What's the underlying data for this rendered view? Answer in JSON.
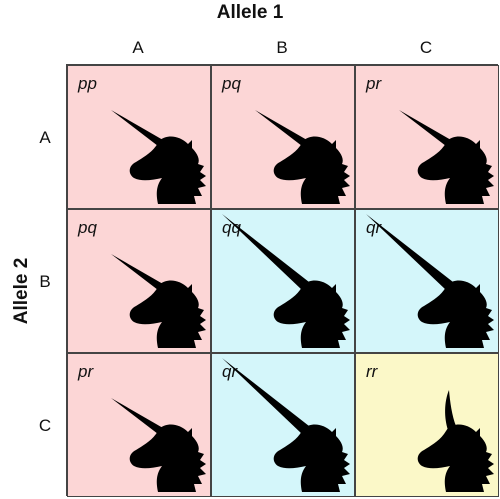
{
  "axis": {
    "x_title": "Allele 1",
    "y_title": "Allele 2"
  },
  "columns": [
    "A",
    "B",
    "C"
  ],
  "rows": [
    "A",
    "B",
    "C"
  ],
  "colors": {
    "pink": "#fcd6d6",
    "cyan": "#d4f6fa",
    "yellow": "#fbf8c8"
  },
  "cells": [
    [
      {
        "label": "pp",
        "color": "pink",
        "horn": "short"
      },
      {
        "label": "pq",
        "color": "pink",
        "horn": "short"
      },
      {
        "label": "pr",
        "color": "pink",
        "horn": "short"
      }
    ],
    [
      {
        "label": "pq",
        "color": "pink",
        "horn": "short"
      },
      {
        "label": "qq",
        "color": "cyan",
        "horn": "long"
      },
      {
        "label": "qr",
        "color": "cyan",
        "horn": "long"
      }
    ],
    [
      {
        "label": "pr",
        "color": "pink",
        "horn": "short"
      },
      {
        "label": "qr",
        "color": "cyan",
        "horn": "long"
      },
      {
        "label": "rr",
        "color": "yellow",
        "horn": "curved"
      }
    ]
  ]
}
